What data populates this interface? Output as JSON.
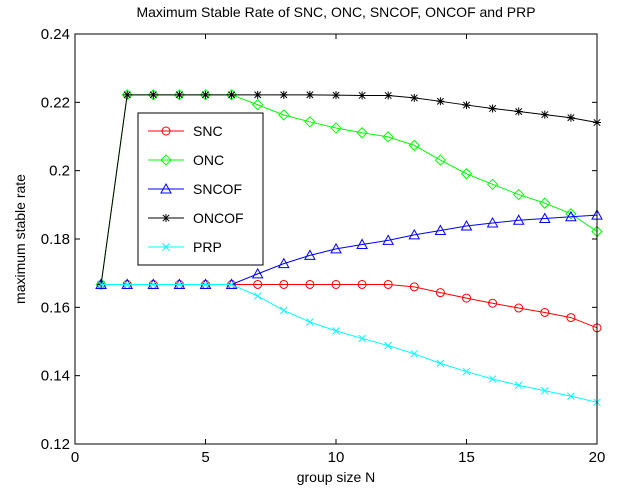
{
  "chart_data": {
    "type": "line",
    "title": "Maximum Stable Rate of SNC, ONC, SNCOF, ONCOF and PRP",
    "xlabel": "group size N",
    "ylabel": "maximum stable rate",
    "xlim": [
      0,
      20
    ],
    "ylim": [
      0.12,
      0.24
    ],
    "xticks": [
      0,
      5,
      10,
      15,
      20
    ],
    "yticks": [
      0.12,
      0.14,
      0.16,
      0.18,
      0.2,
      0.22,
      0.24
    ],
    "xtick_labels": [
      "0",
      "5",
      "10",
      "15",
      "20"
    ],
    "ytick_labels": [
      "0.12",
      "0.14",
      "0.16",
      "0.18",
      "0.2",
      "0.22",
      "0.24"
    ],
    "grid": false,
    "legend_position": "upper-left-inside",
    "x": [
      1,
      2,
      3,
      4,
      5,
      6,
      7,
      8,
      9,
      10,
      11,
      12,
      13,
      14,
      15,
      16,
      17,
      18,
      19,
      20
    ],
    "series": [
      {
        "name": "SNC",
        "color": "#ff0000",
        "marker": "circle",
        "values": [
          0.1667,
          0.1667,
          0.1667,
          0.1667,
          0.1667,
          0.1667,
          0.1667,
          0.1667,
          0.1667,
          0.1667,
          0.1667,
          0.1667,
          0.166,
          0.1643,
          0.1627,
          0.1612,
          0.1598,
          0.1585,
          0.157,
          0.154
        ]
      },
      {
        "name": "ONC",
        "color": "#00ff00",
        "marker": "diamond",
        "values": [
          0.1667,
          0.2222,
          0.2222,
          0.2222,
          0.2222,
          0.2222,
          0.2193,
          0.2163,
          0.2143,
          0.2125,
          0.2111,
          0.2099,
          0.2074,
          0.2031,
          0.1991,
          0.196,
          0.193,
          0.1905,
          0.1874,
          0.1822
        ]
      },
      {
        "name": "SNCOF",
        "color": "#0000ff",
        "marker": "triangle",
        "values": [
          0.1667,
          0.1667,
          0.1667,
          0.1667,
          0.1667,
          0.1667,
          0.1698,
          0.1728,
          0.1752,
          0.1771,
          0.1784,
          0.1796,
          0.1812,
          0.1825,
          0.1838,
          0.1847,
          0.1855,
          0.186,
          0.1865,
          0.187
        ]
      },
      {
        "name": "ONCOF",
        "color": "#000000",
        "marker": "star",
        "values": [
          0.1667,
          0.2222,
          0.2222,
          0.2222,
          0.2222,
          0.2222,
          0.2222,
          0.2222,
          0.2222,
          0.2221,
          0.222,
          0.222,
          0.2213,
          0.2203,
          0.2192,
          0.2182,
          0.2173,
          0.2164,
          0.2155,
          0.2141
        ]
      },
      {
        "name": "PRP",
        "color": "#00ffff",
        "marker": "x",
        "values": [
          0.1667,
          0.1667,
          0.1667,
          0.1667,
          0.1667,
          0.1667,
          0.1633,
          0.1591,
          0.1557,
          0.1531,
          0.1509,
          0.1488,
          0.1464,
          0.1436,
          0.1412,
          0.139,
          0.1372,
          0.1356,
          0.134,
          0.1322
        ]
      }
    ]
  }
}
